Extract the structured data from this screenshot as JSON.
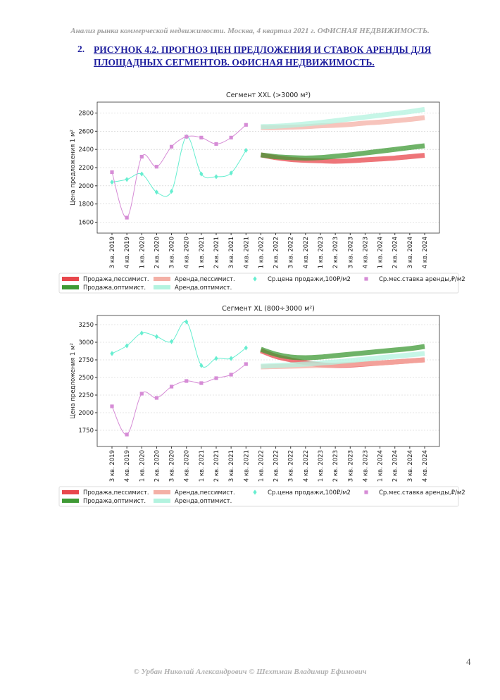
{
  "header": {
    "text": "Анализ рынка коммерческой недвижимости.  Москва,  4 квартал 2021 г.  ОФИСНАЯ НЕДВИЖИМОСТЬ."
  },
  "heading": {
    "number": "2.",
    "text": "РИСУНОК 4.2. ПРОГНОЗ ЦЕН ПРЕДЛОЖЕНИЯ И СТАВОК АРЕНДЫ ДЛЯ ПЛОЩАДНЫХ СЕГМЕНТОВ.  ОФИСНАЯ НЕДВИЖИМОСТЬ."
  },
  "page_number": "4",
  "footer": {
    "text": "© Урбан Николай Александрович  © Шехтман Владимир Ефимович"
  },
  "chart_data": [
    {
      "type": "line",
      "title": "Сегмент XXL (>3000 м²)",
      "y_label": "Цена предложения 1 м²",
      "categories": [
        "3 кв. 2019",
        "4 кв. 2019",
        "1 кв. 2020",
        "2 кв. 2020",
        "3 кв. 2020",
        "4 кв. 2020",
        "1 кв. 2021",
        "2 кв. 2021",
        "3 кв. 2021",
        "4 кв. 2021",
        "1 кв. 2022",
        "2 кв. 2022",
        "3 кв. 2022",
        "4 кв. 2022",
        "1 кв. 2023",
        "2 кв. 2023",
        "3 кв. 2023",
        "4 кв. 2023",
        "1 кв. 2024",
        "2 кв. 2024",
        "3 кв. 2024",
        "4 кв. 2024"
      ],
      "ylim": [
        1480,
        2920
      ],
      "yticks": [
        1600,
        1800,
        2000,
        2200,
        2400,
        2600,
        2800
      ],
      "grid": true,
      "legend": "bottom",
      "series": [
        {
          "name": "Продажа,пессимист.",
          "color": "#e8474c",
          "values": [
            null,
            null,
            null,
            null,
            null,
            null,
            null,
            null,
            null,
            null,
            2340,
            2310,
            2290,
            2280,
            2275,
            2270,
            2275,
            2285,
            2295,
            2305,
            2320,
            2335
          ]
        },
        {
          "name": "Продажа,оптимист.",
          "color": "#3f9a35",
          "values": [
            null,
            null,
            null,
            null,
            null,
            null,
            null,
            null,
            null,
            null,
            2340,
            2320,
            2310,
            2305,
            2310,
            2325,
            2340,
            2360,
            2380,
            2400,
            2420,
            2440
          ]
        },
        {
          "name": "Аренда,пессимист.",
          "color": "#f4b0a6",
          "values": [
            null,
            null,
            null,
            null,
            null,
            null,
            null,
            null,
            null,
            null,
            2640,
            2640,
            2645,
            2650,
            2660,
            2665,
            2675,
            2690,
            2700,
            2715,
            2730,
            2750
          ]
        },
        {
          "name": "Аренда,оптимист.",
          "color": "#b3f3df",
          "values": [
            null,
            null,
            null,
            null,
            null,
            null,
            null,
            null,
            null,
            null,
            2650,
            2655,
            2665,
            2680,
            2695,
            2715,
            2735,
            2755,
            2775,
            2795,
            2815,
            2840
          ]
        },
        {
          "name": "Ср.цена продажи,100₽/м2",
          "color": "#66eed0",
          "marker": "diamond",
          "values": [
            2040,
            2070,
            2130,
            1930,
            1940,
            2540,
            2130,
            2100,
            2140,
            2390,
            null,
            null,
            null,
            null,
            null,
            null,
            null,
            null,
            null,
            null,
            null,
            null
          ]
        },
        {
          "name": "Ср.мес.ставка аренды,₽/м2",
          "color": "#d68cd6",
          "marker": "square",
          "values": [
            2150,
            1650,
            2320,
            2210,
            2430,
            2540,
            2530,
            2460,
            2530,
            2670,
            null,
            null,
            null,
            null,
            null,
            null,
            null,
            null,
            null,
            null,
            null,
            null
          ]
        }
      ]
    },
    {
      "type": "line",
      "title": "Сегмент XL (800÷3000 м²)",
      "y_label": "Цена предложения 1 м²",
      "categories": [
        "3 кв. 2019",
        "4 кв. 2019",
        "1 кв. 2020",
        "2 кв. 2020",
        "3 кв. 2020",
        "4 кв. 2020",
        "1 кв. 2021",
        "2 кв. 2021",
        "3 кв. 2021",
        "4 кв. 2021",
        "1 кв. 2022",
        "2 кв. 2022",
        "3 кв. 2022",
        "4 кв. 2022",
        "1 кв. 2023",
        "2 кв. 2023",
        "3 кв. 2023",
        "4 кв. 2023",
        "1 кв. 2024",
        "2 кв. 2024",
        "3 кв. 2024",
        "4 кв. 2024"
      ],
      "ylim": [
        1520,
        3380
      ],
      "yticks": [
        1750,
        2000,
        2250,
        2500,
        2750,
        3000,
        3250
      ],
      "grid": true,
      "legend": "bottom",
      "series": [
        {
          "name": "Продажа,пессимист.",
          "color": "#e8474c",
          "values": [
            null,
            null,
            null,
            null,
            null,
            null,
            null,
            null,
            null,
            null,
            2880,
            2800,
            2750,
            2710,
            2680,
            2670,
            2675,
            2690,
            2705,
            2720,
            2735,
            2750
          ]
        },
        {
          "name": "Продажа,оптимист.",
          "color": "#3f9a35",
          "values": [
            null,
            null,
            null,
            null,
            null,
            null,
            null,
            null,
            null,
            null,
            2900,
            2830,
            2790,
            2780,
            2790,
            2810,
            2830,
            2850,
            2870,
            2890,
            2910,
            2940
          ]
        },
        {
          "name": "Аренда,пессимист.",
          "color": "#f4b0a6",
          "values": [
            null,
            null,
            null,
            null,
            null,
            null,
            null,
            null,
            null,
            null,
            2650,
            2655,
            2660,
            2665,
            2670,
            2675,
            2685,
            2695,
            2705,
            2720,
            2735,
            2750
          ]
        },
        {
          "name": "Аренда,оптимист.",
          "color": "#b3f3df",
          "values": [
            null,
            null,
            null,
            null,
            null,
            null,
            null,
            null,
            null,
            null,
            2660,
            2670,
            2680,
            2690,
            2705,
            2720,
            2740,
            2760,
            2780,
            2800,
            2820,
            2840
          ]
        },
        {
          "name": "Ср.цена продажи,100₽/м2",
          "color": "#66eed0",
          "marker": "diamond",
          "values": [
            2840,
            2950,
            3130,
            3080,
            3010,
            3290,
            2670,
            2770,
            2770,
            2920,
            null,
            null,
            null,
            null,
            null,
            null,
            null,
            null,
            null,
            null,
            null,
            null
          ]
        },
        {
          "name": "Ср.мес.ставка аренды,₽/м2",
          "color": "#d68cd6",
          "marker": "square",
          "values": [
            2090,
            1690,
            2270,
            2210,
            2370,
            2450,
            2420,
            2490,
            2540,
            2690,
            null,
            null,
            null,
            null,
            null,
            null,
            null,
            null,
            null,
            null,
            null,
            null
          ]
        }
      ]
    }
  ]
}
